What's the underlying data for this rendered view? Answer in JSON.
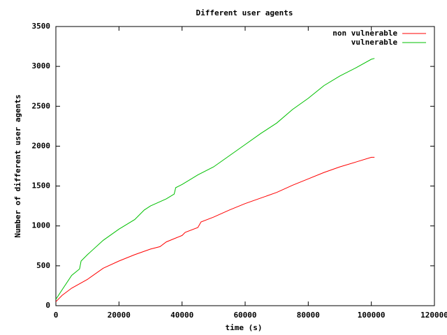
{
  "chart_data": {
    "type": "line",
    "title": "Different user agents",
    "x_label": "time (s)",
    "y_label": "Number of different user agents",
    "xlim": [
      0,
      120000
    ],
    "xticks": [
      0,
      20000,
      40000,
      60000,
      80000,
      100000,
      120000
    ],
    "ylim": [
      0,
      3500
    ],
    "yticks": [
      0,
      500,
      1000,
      1500,
      2000,
      2500,
      3000,
      3500
    ],
    "legend": "top-right",
    "series": [
      {
        "name": "non vulnerable",
        "color": "#ff0000",
        "x": [
          0,
          2000,
          5000,
          10000,
          15000,
          20000,
          25000,
          30000,
          33000,
          35000,
          40000,
          41000,
          45000,
          46000,
          50000,
          55000,
          60000,
          65000,
          70000,
          75000,
          80000,
          85000,
          90000,
          95000,
          100000,
          101000
        ],
        "values": [
          50,
          130,
          220,
          330,
          470,
          560,
          640,
          710,
          740,
          800,
          880,
          920,
          980,
          1050,
          1110,
          1200,
          1280,
          1350,
          1420,
          1510,
          1590,
          1670,
          1740,
          1800,
          1860,
          1860
        ]
      },
      {
        "name": "vulnerable",
        "color": "#00c000",
        "x": [
          0,
          2000,
          5000,
          7500,
          8000,
          10000,
          15000,
          20000,
          25000,
          28000,
          30000,
          35000,
          37500,
          38000,
          40000,
          45000,
          50000,
          55000,
          60000,
          65000,
          70000,
          75000,
          80000,
          85000,
          90000,
          95000,
          100000,
          101000
        ],
        "values": [
          80,
          200,
          380,
          460,
          560,
          640,
          820,
          960,
          1080,
          1200,
          1250,
          1340,
          1400,
          1480,
          1520,
          1640,
          1740,
          1880,
          2020,
          2160,
          2290,
          2460,
          2600,
          2760,
          2880,
          2980,
          3090,
          3100
        ]
      }
    ]
  }
}
